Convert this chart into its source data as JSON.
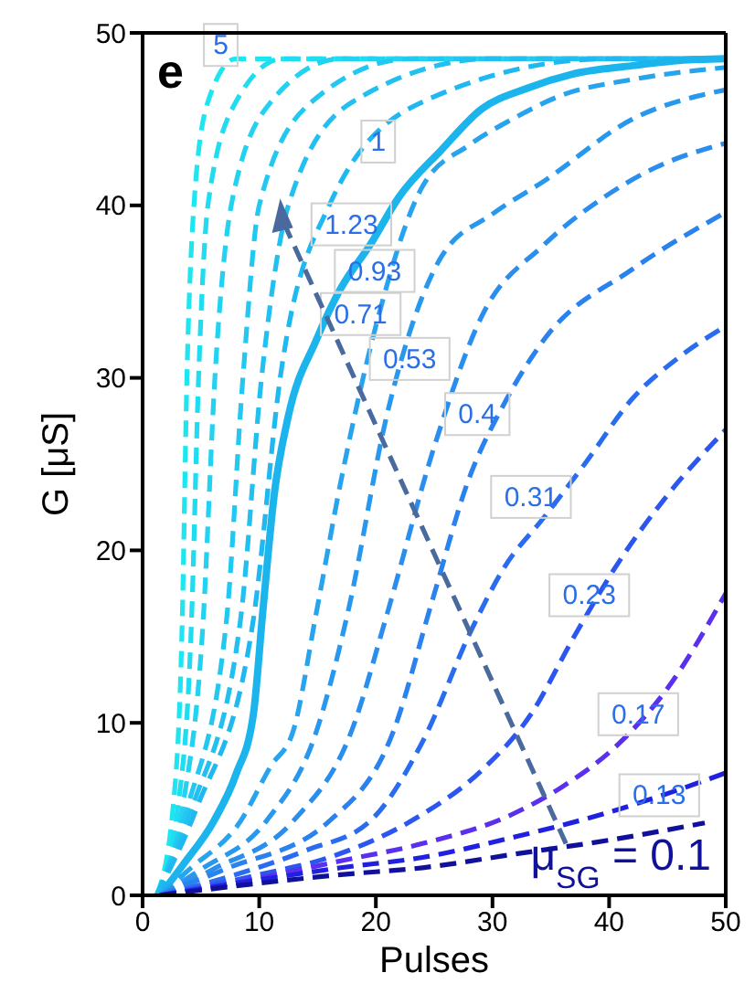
{
  "chart_data": {
    "type": "line",
    "title": "e",
    "xlabel": "Pulses",
    "ylabel": "G [μS]",
    "xlim": [
      0,
      50
    ],
    "ylim": [
      0,
      50
    ],
    "xticks": [
      0,
      10,
      20,
      30,
      40,
      50
    ],
    "yticks": [
      0,
      10,
      20,
      30,
      40,
      50
    ],
    "grid": false,
    "legend": false,
    "marker": "none",
    "line_style": "dashed",
    "series": [
      {
        "color": "#1ee6f0",
        "x": [
          1.2,
          2.6,
          3.4,
          3.8,
          4.4,
          5.6,
          8,
          50
        ],
        "values": [
          0,
          5,
          16,
          30,
          40,
          46,
          48.5,
          48.5
        ]
      },
      {
        "color": "#20dcf0",
        "x": [
          1.2,
          3,
          4.2,
          4.8,
          5.6,
          8,
          12,
          50
        ],
        "values": [
          0,
          5,
          16,
          30,
          40,
          46,
          48.5,
          48.5
        ]
      },
      {
        "color": "#22d2f0",
        "x": [
          1.2,
          3.4,
          5.2,
          6.2,
          7.6,
          11,
          17,
          50
        ],
        "values": [
          0,
          5,
          16,
          30,
          40,
          46,
          48.5,
          48.5
        ]
      },
      {
        "color": "#22c8f0",
        "x": [
          1.2,
          3.8,
          7.2,
          8.6,
          10,
          14.5,
          23,
          50
        ],
        "values": [
          0,
          5,
          16,
          30,
          40,
          46,
          48.5,
          48.5
        ]
      },
      {
        "color": "#22c0f0",
        "x": [
          1.2,
          4.2,
          8.4,
          10.2,
          12.5,
          18,
          30,
          50
        ],
        "values": [
          0,
          5,
          16,
          30,
          40,
          46,
          48.5,
          48.5
        ]
      },
      {
        "color": "#1fb8f0",
        "x": [
          1.2,
          4.6,
          9.5,
          11.8,
          16,
          24,
          40,
          50
        ],
        "values": [
          0,
          5,
          16,
          30,
          40,
          46,
          48.5,
          48.5
        ]
      },
      {
        "color": "#1cb4ec",
        "line_style": "solid",
        "x": [
          1.5,
          3.5,
          6.1,
          8,
          9.5,
          10.3,
          11.3,
          12.5,
          14.9,
          17,
          19.5,
          22,
          25.6,
          29.1,
          33,
          36.8,
          42,
          46,
          50
        ],
        "values": [
          0,
          1.8,
          4.3,
          7,
          10.5,
          16.4,
          23.3,
          27.8,
          32.2,
          35.2,
          37.7,
          40.5,
          43.2,
          45.6,
          46.8,
          47.6,
          48.1,
          48.4,
          48.5
        ]
      },
      {
        "color": "#28a4ee",
        "x": [
          1.5,
          4,
          8.4,
          11,
          12.9,
          14.9,
          17,
          20,
          24,
          28,
          31.7,
          36,
          42,
          50
        ],
        "values": [
          0,
          1.5,
          4.3,
          7.5,
          9.5,
          16.4,
          24,
          33,
          41.1,
          43.5,
          45,
          46.4,
          47.3,
          48
        ]
      },
      {
        "color": "#2898ee",
        "x": [
          1.5,
          5,
          10.6,
          14.9,
          17.6,
          21,
          25.6,
          30,
          34.4,
          42,
          50
        ],
        "values": [
          0,
          1.5,
          4.3,
          9.5,
          16.4,
          28,
          37,
          39.5,
          41.4,
          45,
          46.7
        ]
      },
      {
        "color": "#2a8eee",
        "x": [
          1.5,
          6,
          12.9,
          17.9,
          21,
          25,
          29.1,
          34.4,
          39.4,
          44,
          50
        ],
        "values": [
          0,
          1.5,
          4.3,
          9.5,
          16.4,
          26,
          33.6,
          37.7,
          40.4,
          42.2,
          43.6
        ]
      },
      {
        "color": "#2a82ee",
        "x": [
          1.5,
          7,
          16,
          21.5,
          24.8,
          27.9,
          31,
          34.4,
          42,
          50
        ],
        "values": [
          0,
          1.5,
          4.3,
          9.5,
          17,
          24,
          28.5,
          32.2,
          36.3,
          39.6
        ]
      },
      {
        "color": "#2a6cf0",
        "x": [
          1.5,
          8,
          14,
          19.5,
          24,
          28.2,
          31,
          34.4,
          37.9,
          42,
          46,
          50
        ],
        "values": [
          0,
          1.2,
          2.6,
          4.3,
          8.9,
          15.4,
          19,
          21.9,
          25,
          28.8,
          31.2,
          33
        ]
      },
      {
        "color": "#2b56f0",
        "x": [
          1.5,
          10,
          16,
          23.5,
          29,
          33.3,
          37,
          41,
          45,
          50
        ],
        "values": [
          0,
          1.2,
          2.2,
          4.5,
          7.2,
          10.5,
          15,
          19.5,
          23.2,
          27
        ]
      },
      {
        "color": "#5a30ee",
        "x": [
          1.5,
          10,
          17,
          24,
          31.7,
          36,
          41,
          45,
          50
        ],
        "values": [
          0,
          1,
          2,
          3,
          4.7,
          6.3,
          8.9,
          12,
          17.5
        ]
      },
      {
        "color": "#2020e0",
        "x": [
          1.5,
          10,
          17,
          24,
          32,
          39.4,
          45,
          50
        ],
        "values": [
          0,
          0.9,
          1.6,
          2.2,
          3.4,
          4.7,
          5.9,
          7.1
        ]
      },
      {
        "color": "#10109a",
        "x": [
          1.5,
          10,
          17,
          24,
          32,
          40,
          48.2
        ],
        "values": [
          0,
          0.7,
          1.2,
          1.6,
          2.4,
          3.2,
          4.2
        ]
      }
    ],
    "annotations": [
      {
        "text": "5",
        "x": 6.7,
        "y": 49.3
      },
      {
        "text": "1",
        "x": 20.2,
        "y": 43.7
      },
      {
        "text": "1.23",
        "x": 17.9,
        "y": 38.9
      },
      {
        "text": "0.93",
        "x": 19.9,
        "y": 36.2
      },
      {
        "text": "0.71",
        "x": 18.7,
        "y": 33.7
      },
      {
        "text": "0.53",
        "x": 22.9,
        "y": 31.1
      },
      {
        "text": "0.4",
        "x": 28.7,
        "y": 27.9
      },
      {
        "text": "0.31",
        "x": 33.3,
        "y": 23.1
      },
      {
        "text": "0.23",
        "x": 38.3,
        "y": 17.4
      },
      {
        "text": "0.17",
        "x": 42.5,
        "y": 10.5
      },
      {
        "text": "0.13",
        "x": 44.3,
        "y": 5.8
      },
      "μ$_{SG}$ = 0.1"
    ]
  }
}
